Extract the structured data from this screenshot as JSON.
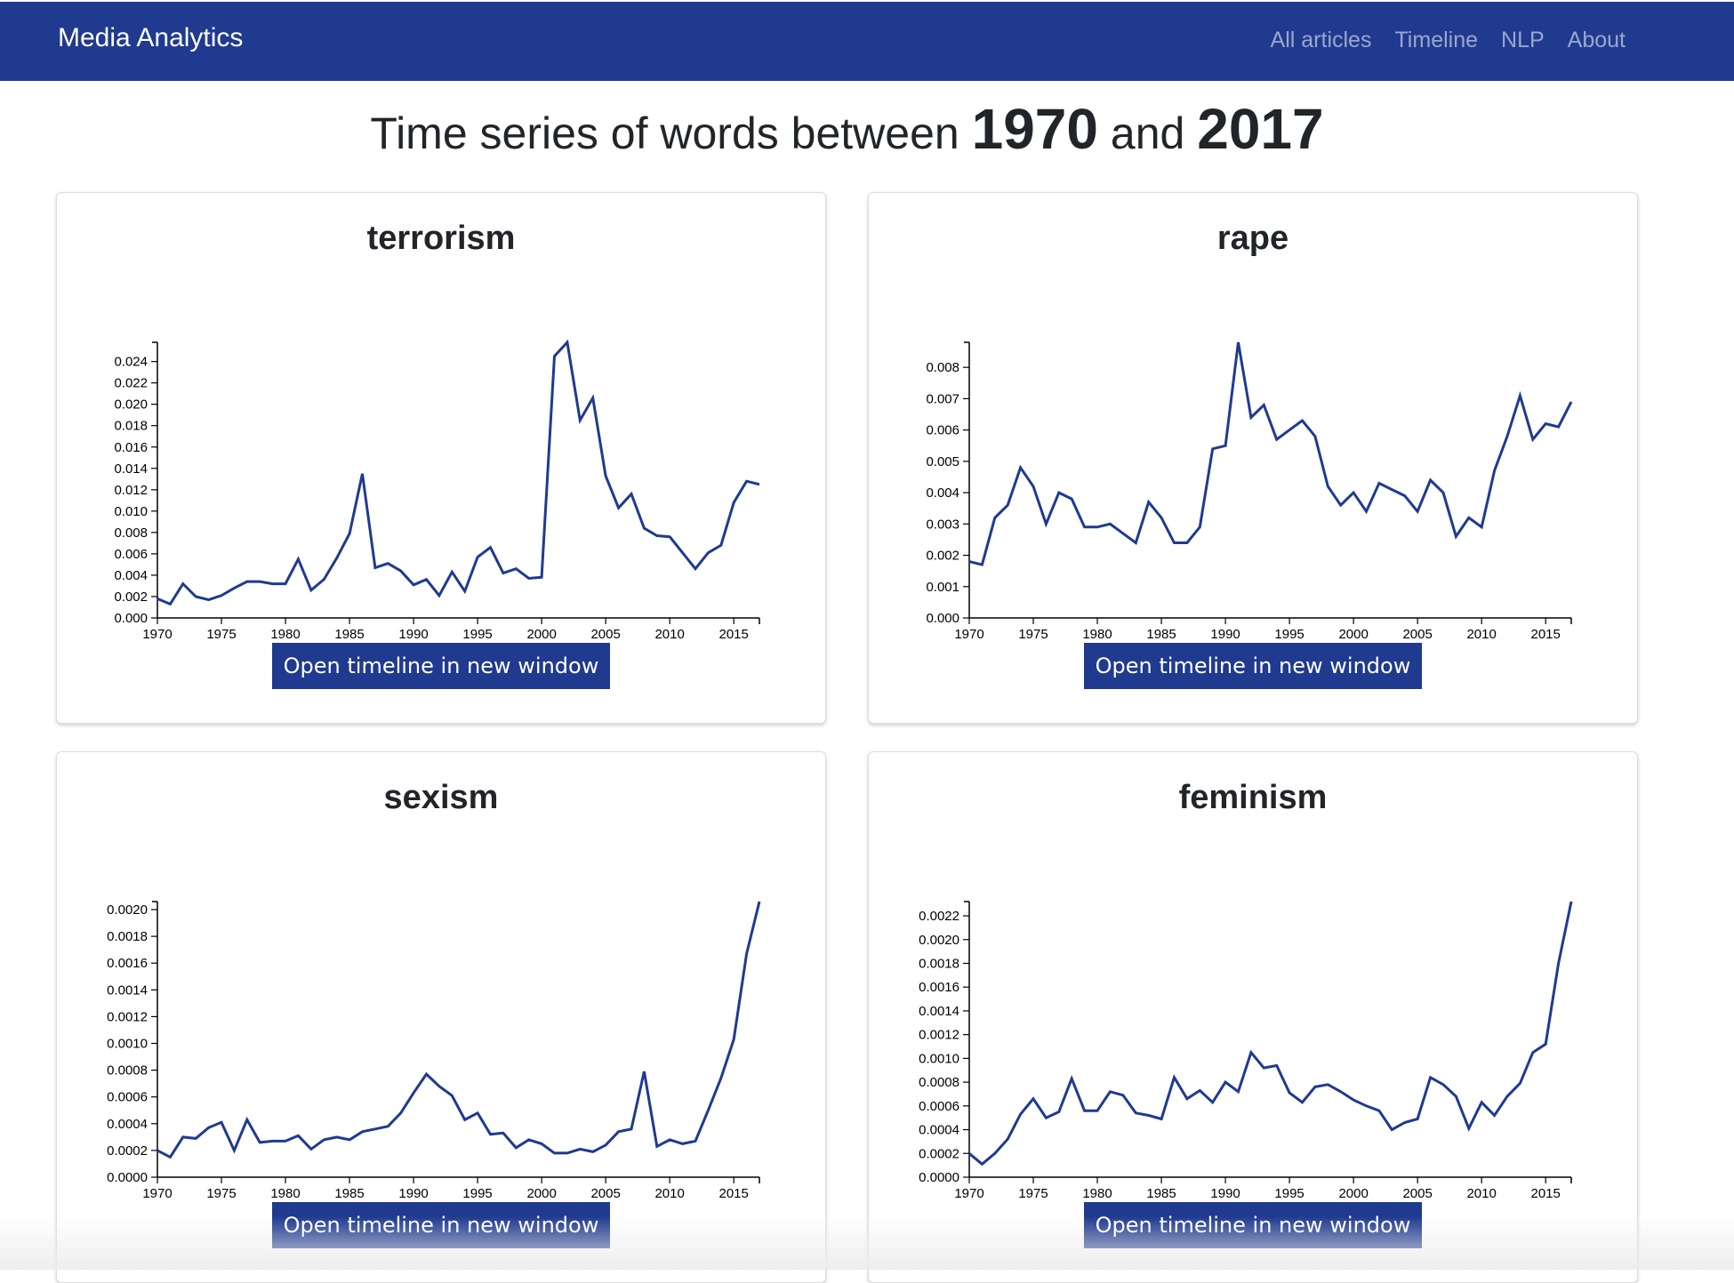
{
  "navbar": {
    "brand": "Media Analytics",
    "links": [
      "All articles",
      "Timeline",
      "NLP",
      "About"
    ]
  },
  "heading": {
    "prefix": "Time series of words between",
    "start_year": "1970",
    "connector": "and",
    "end_year": "2017"
  },
  "colors": {
    "brand": "#1f3a8f",
    "line": "#1f3a8f"
  },
  "cards": [
    {
      "title": "terrorism",
      "button": "Open timeline in new window"
    },
    {
      "title": "rape",
      "button": "Open timeline in new window"
    },
    {
      "title": "sexism",
      "button": "Open timeline in new window"
    },
    {
      "title": "feminism",
      "button": "Open timeline in new window"
    }
  ],
  "chart_data": [
    {
      "type": "line",
      "title": "terrorism",
      "xlabel": "",
      "ylabel": "",
      "xlim": [
        1970,
        2017
      ],
      "ylim": [
        0,
        0.0258
      ],
      "xticks": [
        "1970",
        "1975",
        "1980",
        "1985",
        "1990",
        "1995",
        "2000",
        "2005",
        "2010",
        "2015"
      ],
      "yticks": [
        "0.000",
        "0.002",
        "0.004",
        "0.006",
        "0.008",
        "0.010",
        "0.012",
        "0.014",
        "0.016",
        "0.018",
        "0.020",
        "0.022",
        "0.024"
      ],
      "x": [
        1970,
        1971,
        1972,
        1973,
        1974,
        1975,
        1976,
        1977,
        1978,
        1979,
        1980,
        1981,
        1982,
        1983,
        1984,
        1985,
        1986,
        1987,
        1988,
        1989,
        1990,
        1991,
        1992,
        1993,
        1994,
        1995,
        1996,
        1997,
        1998,
        1999,
        2000,
        2001,
        2002,
        2003,
        2004,
        2005,
        2006,
        2007,
        2008,
        2009,
        2010,
        2011,
        2012,
        2013,
        2014,
        2015,
        2016,
        2017
      ],
      "values": [
        0.0018,
        0.0013,
        0.0032,
        0.002,
        0.0017,
        0.0021,
        0.0028,
        0.0034,
        0.0034,
        0.0032,
        0.0032,
        0.0055,
        0.0026,
        0.0036,
        0.0056,
        0.0079,
        0.0135,
        0.0047,
        0.0051,
        0.0044,
        0.0031,
        0.0036,
        0.0021,
        0.0043,
        0.0025,
        0.0057,
        0.0066,
        0.0042,
        0.0046,
        0.0037,
        0.0038,
        0.0245,
        0.0258,
        0.0185,
        0.0206,
        0.0133,
        0.0103,
        0.0116,
        0.0084,
        0.0077,
        0.0076,
        0.0061,
        0.0046,
        0.0061,
        0.0068,
        0.0108,
        0.0128,
        0.0125
      ]
    },
    {
      "type": "line",
      "title": "rape",
      "xlabel": "",
      "ylabel": "",
      "xlim": [
        1970,
        2017
      ],
      "ylim": [
        0,
        0.0088
      ],
      "xticks": [
        "1970",
        "1975",
        "1980",
        "1985",
        "1990",
        "1995",
        "2000",
        "2005",
        "2010",
        "2015"
      ],
      "yticks": [
        "0.000",
        "0.001",
        "0.002",
        "0.003",
        "0.004",
        "0.005",
        "0.006",
        "0.007",
        "0.008"
      ],
      "x": [
        1970,
        1971,
        1972,
        1973,
        1974,
        1975,
        1976,
        1977,
        1978,
        1979,
        1980,
        1981,
        1982,
        1983,
        1984,
        1985,
        1986,
        1987,
        1988,
        1989,
        1990,
        1991,
        1992,
        1993,
        1994,
        1995,
        1996,
        1997,
        1998,
        1999,
        2000,
        2001,
        2002,
        2003,
        2004,
        2005,
        2006,
        2007,
        2008,
        2009,
        2010,
        2011,
        2012,
        2013,
        2014,
        2015,
        2016,
        2017
      ],
      "values": [
        0.0018,
        0.0017,
        0.0032,
        0.0036,
        0.0048,
        0.0042,
        0.003,
        0.004,
        0.0038,
        0.0029,
        0.0029,
        0.003,
        0.0027,
        0.0024,
        0.0037,
        0.0032,
        0.0024,
        0.0024,
        0.0029,
        0.0054,
        0.0055,
        0.0088,
        0.0064,
        0.0068,
        0.0057,
        0.006,
        0.0063,
        0.0058,
        0.0042,
        0.0036,
        0.004,
        0.0034,
        0.0043,
        0.0041,
        0.0039,
        0.0034,
        0.0044,
        0.004,
        0.0026,
        0.0032,
        0.0029,
        0.0047,
        0.0058,
        0.0071,
        0.0057,
        0.0062,
        0.0061,
        0.0069
      ]
    },
    {
      "type": "line",
      "title": "sexism",
      "xlabel": "",
      "ylabel": "",
      "xlim": [
        1970,
        2017
      ],
      "ylim": [
        0,
        0.00206
      ],
      "xticks": [
        "1970",
        "1975",
        "1980",
        "1985",
        "1990",
        "1995",
        "2000",
        "2005",
        "2010",
        "2015"
      ],
      "yticks": [
        "0.0000",
        "0.0002",
        "0.0004",
        "0.0006",
        "0.0008",
        "0.0010",
        "0.0012",
        "0.0014",
        "0.0016",
        "0.0018",
        "0.0020"
      ],
      "x": [
        1970,
        1971,
        1972,
        1973,
        1974,
        1975,
        1976,
        1977,
        1978,
        1979,
        1980,
        1981,
        1982,
        1983,
        1984,
        1985,
        1986,
        1987,
        1988,
        1989,
        1990,
        1991,
        1992,
        1993,
        1994,
        1995,
        1996,
        1997,
        1998,
        1999,
        2000,
        2001,
        2002,
        2003,
        2004,
        2005,
        2006,
        2007,
        2008,
        2009,
        2010,
        2011,
        2012,
        2013,
        2014,
        2015,
        2016,
        2017
      ],
      "values": [
        0.0002,
        0.00015,
        0.0003,
        0.00029,
        0.00037,
        0.00041,
        0.0002,
        0.00043,
        0.00026,
        0.00027,
        0.00027,
        0.00031,
        0.00021,
        0.00028,
        0.0003,
        0.00028,
        0.00034,
        0.00036,
        0.00038,
        0.00048,
        0.00063,
        0.00077,
        0.00068,
        0.00061,
        0.00043,
        0.00048,
        0.00032,
        0.00033,
        0.00022,
        0.00028,
        0.00025,
        0.00018,
        0.00018,
        0.00021,
        0.00019,
        0.00024,
        0.00034,
        0.00036,
        0.00079,
        0.00023,
        0.00028,
        0.00025,
        0.00027,
        0.0005,
        0.00074,
        0.00103,
        0.00167,
        0.00206
      ]
    },
    {
      "type": "line",
      "title": "feminism",
      "xlabel": "",
      "ylabel": "",
      "xlim": [
        1970,
        2017
      ],
      "ylim": [
        0,
        0.00232
      ],
      "xticks": [
        "1970",
        "1975",
        "1980",
        "1985",
        "1990",
        "1995",
        "2000",
        "2005",
        "2010",
        "2015"
      ],
      "yticks": [
        "0.0000",
        "0.0002",
        "0.0004",
        "0.0006",
        "0.0008",
        "0.0010",
        "0.0012",
        "0.0014",
        "0.0016",
        "0.0018",
        "0.0020",
        "0.0022"
      ],
      "x": [
        1970,
        1971,
        1972,
        1973,
        1974,
        1975,
        1976,
        1977,
        1978,
        1979,
        1980,
        1981,
        1982,
        1983,
        1984,
        1985,
        1986,
        1987,
        1988,
        1989,
        1990,
        1991,
        1992,
        1993,
        1994,
        1995,
        1996,
        1997,
        1998,
        1999,
        2000,
        2001,
        2002,
        2003,
        2004,
        2005,
        2006,
        2007,
        2008,
        2009,
        2010,
        2011,
        2012,
        2013,
        2014,
        2015,
        2016,
        2017
      ],
      "values": [
        0.0002,
        0.00011,
        0.0002,
        0.00032,
        0.00053,
        0.00066,
        0.0005,
        0.00055,
        0.00083,
        0.00056,
        0.00056,
        0.00072,
        0.00069,
        0.00054,
        0.00052,
        0.00049,
        0.00084,
        0.00066,
        0.00073,
        0.00063,
        0.0008,
        0.00072,
        0.00105,
        0.00092,
        0.00094,
        0.00071,
        0.00063,
        0.00076,
        0.00078,
        0.00072,
        0.00065,
        0.0006,
        0.00056,
        0.0004,
        0.00046,
        0.00049,
        0.00084,
        0.00078,
        0.00068,
        0.00041,
        0.00063,
        0.00052,
        0.00068,
        0.00079,
        0.00105,
        0.00112,
        0.0018,
        0.00232
      ]
    }
  ]
}
